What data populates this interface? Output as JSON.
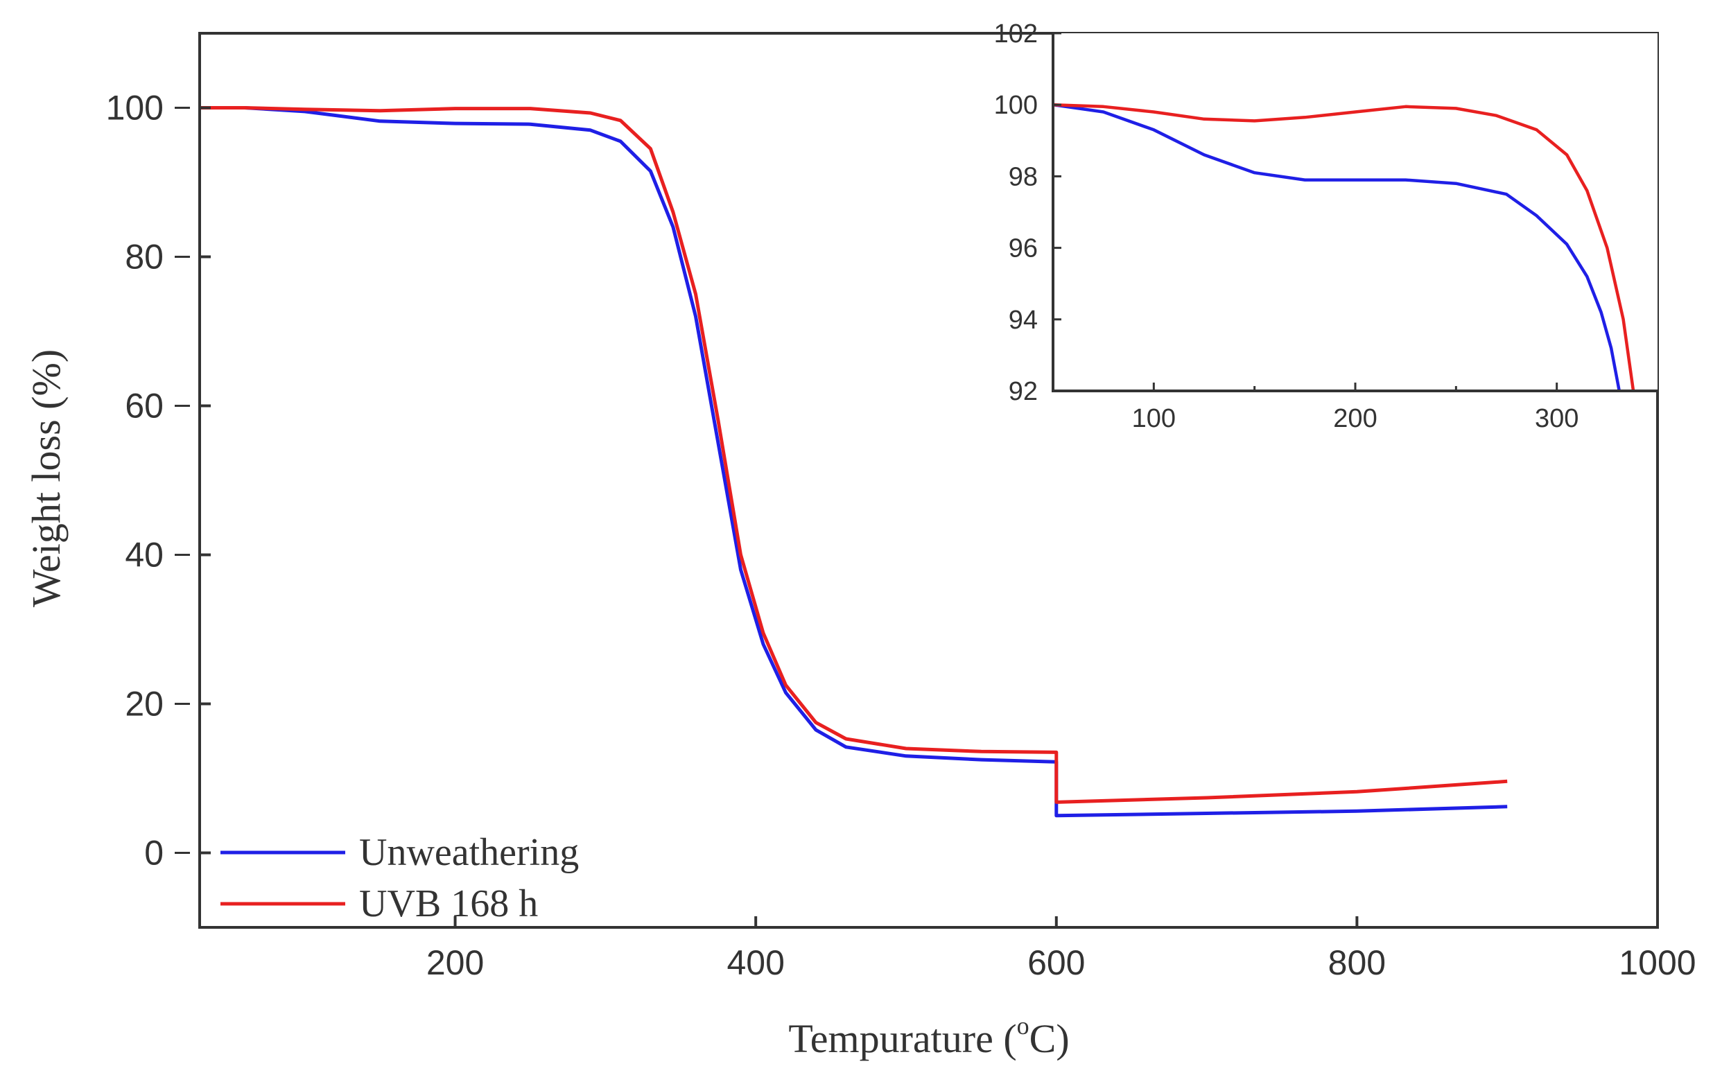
{
  "chart_data": [
    {
      "type": "line",
      "role": "main",
      "xlabel_parts": {
        "before": "Tempurature (",
        "sup": "o",
        "after": "C)"
      },
      "ylabel": "Weight loss (%)",
      "xlim": [
        30,
        1000
      ],
      "ylim": [
        -10,
        110
      ],
      "xticks": [
        200,
        400,
        600,
        800,
        1000
      ],
      "yticks": [
        0,
        20,
        40,
        60,
        80,
        100
      ],
      "legend_position": "bottom-left",
      "series": [
        {
          "name": "Unweathering",
          "color": "#1f1fe6",
          "points": [
            [
              30,
              100
            ],
            [
              60,
              100
            ],
            [
              100,
              99.5
            ],
            [
              150,
              98.2
            ],
            [
              200,
              97.9
            ],
            [
              250,
              97.8
            ],
            [
              290,
              97
            ],
            [
              310,
              95.5
            ],
            [
              330,
              91.5
            ],
            [
              345,
              84
            ],
            [
              360,
              72
            ],
            [
              375,
              55
            ],
            [
              390,
              38
            ],
            [
              405,
              28
            ],
            [
              420,
              21.5
            ],
            [
              440,
              16.5
            ],
            [
              460,
              14.2
            ],
            [
              500,
              13
            ],
            [
              550,
              12.5
            ],
            [
              600,
              12.2
            ],
            [
              600,
              5
            ],
            [
              700,
              5.3
            ],
            [
              800,
              5.6
            ],
            [
              900,
              6.2
            ]
          ]
        },
        {
          "name": "UVB 168 h",
          "color": "#e82020",
          "points": [
            [
              30,
              100
            ],
            [
              60,
              100
            ],
            [
              100,
              99.8
            ],
            [
              150,
              99.6
            ],
            [
              200,
              99.9
            ],
            [
              250,
              99.9
            ],
            [
              290,
              99.3
            ],
            [
              310,
              98.3
            ],
            [
              330,
              94.5
            ],
            [
              345,
              86
            ],
            [
              360,
              75
            ],
            [
              375,
              58
            ],
            [
              390,
              40
            ],
            [
              405,
              29.5
            ],
            [
              420,
              22.5
            ],
            [
              440,
              17.5
            ],
            [
              460,
              15.3
            ],
            [
              500,
              14
            ],
            [
              550,
              13.6
            ],
            [
              600,
              13.5
            ],
            [
              600,
              6.8
            ],
            [
              700,
              7.4
            ],
            [
              800,
              8.2
            ],
            [
              900,
              9.6
            ]
          ]
        }
      ]
    },
    {
      "type": "line",
      "role": "inset",
      "xlim": [
        50,
        350
      ],
      "ylim": [
        92,
        102
      ],
      "xticks": [
        100,
        200,
        300
      ],
      "xminor": [
        150,
        250
      ],
      "yticks": [
        92,
        94,
        96,
        98,
        100,
        102
      ],
      "series": [
        {
          "name": "Unweathering",
          "color": "#1f1fe6",
          "points": [
            [
              50,
              100
            ],
            [
              75,
              99.8
            ],
            [
              100,
              99.3
            ],
            [
              125,
              98.6
            ],
            [
              150,
              98.1
            ],
            [
              175,
              97.9
            ],
            [
              200,
              97.9
            ],
            [
              225,
              97.9
            ],
            [
              250,
              97.8
            ],
            [
              275,
              97.5
            ],
            [
              290,
              96.9
            ],
            [
              305,
              96.1
            ],
            [
              315,
              95.2
            ],
            [
              322,
              94.2
            ],
            [
              327,
              93.2
            ],
            [
              331,
              92
            ]
          ]
        },
        {
          "name": "UVB 168 h",
          "color": "#e82020",
          "points": [
            [
              50,
              100
            ],
            [
              75,
              99.95
            ],
            [
              100,
              99.8
            ],
            [
              125,
              99.6
            ],
            [
              150,
              99.55
            ],
            [
              175,
              99.65
            ],
            [
              200,
              99.8
            ],
            [
              225,
              99.95
            ],
            [
              250,
              99.9
            ],
            [
              270,
              99.7
            ],
            [
              290,
              99.3
            ],
            [
              305,
              98.6
            ],
            [
              315,
              97.6
            ],
            [
              325,
              96
            ],
            [
              333,
              94
            ],
            [
              338,
              92
            ]
          ]
        }
      ]
    }
  ]
}
